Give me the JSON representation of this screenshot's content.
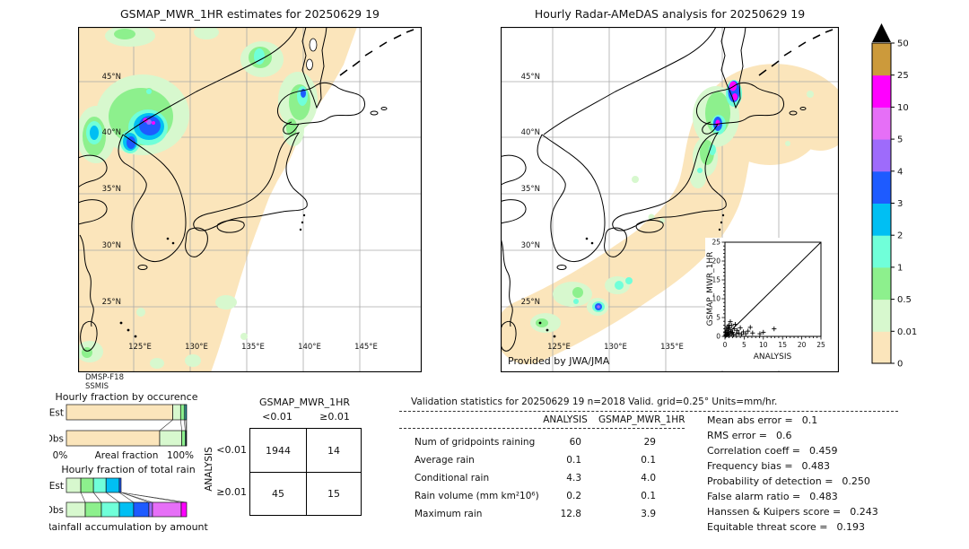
{
  "titles": {
    "left_map": "GSMAP_MWR_1HR estimates for 20250629 19",
    "right_map": "Hourly Radar-AMeDAS analysis for 20250629 19"
  },
  "maps": {
    "left": {
      "lat_labels": [
        "45°N",
        "40°N",
        "35°N",
        "30°N",
        "25°N"
      ],
      "lon_labels": [
        "125°E",
        "130°E",
        "135°E",
        "140°E",
        "145°E"
      ],
      "source_line1": "DMSP-F18",
      "source_line2": "SSMIS"
    },
    "right": {
      "lat_labels": [
        "45°N",
        "40°N",
        "35°N",
        "30°N",
        "25°N"
      ],
      "lon_labels": [
        "125°E",
        "130°E",
        "135°E"
      ],
      "credit": "Provided by JWA/JMA"
    }
  },
  "colorbar": {
    "tick_labels": [
      "0",
      "0.01",
      "0.5",
      "1",
      "2",
      "3",
      "4",
      "5",
      "10",
      "25",
      "50"
    ],
    "band_colors": [
      "#FBE5BB",
      "#D7F8CE",
      "#8DF08D",
      "#70FFD9",
      "#00BFF3",
      "#1E5BFF",
      "#9E6BFB",
      "#E66FF7",
      "#FF00FF",
      "#CC9A3B"
    ],
    "over_arrow_color": "#000000"
  },
  "chart_data": [
    {
      "type": "scatter",
      "xlabel": "ANALYSIS",
      "ylabel": "GSMAP_MWR_1HR",
      "xlim": [
        0,
        25
      ],
      "ylim": [
        0,
        25
      ],
      "ticks": [
        0,
        5,
        10,
        15,
        20,
        25
      ],
      "identity_line": true,
      "marker": "+",
      "points": [
        [
          0.1,
          0.1
        ],
        [
          0.2,
          0.5
        ],
        [
          0.2,
          1.2
        ],
        [
          0.3,
          0.3
        ],
        [
          0.4,
          2.1
        ],
        [
          0.5,
          0.9
        ],
        [
          0.5,
          1.6
        ],
        [
          0.6,
          0.4
        ],
        [
          0.7,
          2.6
        ],
        [
          0.8,
          1.1
        ],
        [
          0.9,
          0.6
        ],
        [
          1.0,
          1.9
        ],
        [
          1.0,
          3.0
        ],
        [
          1.1,
          0.3
        ],
        [
          1.2,
          2.3
        ],
        [
          1.4,
          3.9
        ],
        [
          1.5,
          1.4
        ],
        [
          1.7,
          0.8
        ],
        [
          1.8,
          2.9
        ],
        [
          2.0,
          1.1
        ],
        [
          2.2,
          0.4
        ],
        [
          2.4,
          2.0
        ],
        [
          2.7,
          3.2
        ],
        [
          3.0,
          0.7
        ],
        [
          3.2,
          1.6
        ],
        [
          3.6,
          0.9
        ],
        [
          4.0,
          2.3
        ],
        [
          4.3,
          0.5
        ],
        [
          4.8,
          1.2
        ],
        [
          5.4,
          0.7
        ],
        [
          6.0,
          1.4
        ],
        [
          6.6,
          2.4
        ],
        [
          7.2,
          0.9
        ],
        [
          9.1,
          0.7
        ],
        [
          10.0,
          1.1
        ],
        [
          12.8,
          2.0
        ]
      ]
    },
    {
      "type": "bar",
      "orientation": "horizontal-stacked",
      "title": "Hourly fraction by occurence",
      "xlabel": "Areal fraction",
      "x_axis_left": "0%",
      "x_axis_right": "100%",
      "rows": [
        {
          "label": "Est",
          "segments": [
            {
              "bin": "0",
              "color": "#FBE5BB",
              "pct": 88.5
            },
            {
              "bin": "0.01-0.5",
              "color": "#D7F8CE",
              "pct": 6.5
            },
            {
              "bin": "0.5-1",
              "color": "#8DF08D",
              "pct": 3.0
            },
            {
              "bin": "1-2",
              "color": "#70FFD9",
              "pct": 1.2
            },
            {
              "bin": "2-3",
              "color": "#00BFF3",
              "pct": 0.8
            }
          ]
        },
        {
          "label": "Obs",
          "segments": [
            {
              "bin": "0",
              "color": "#FBE5BB",
              "pct": 77.6
            },
            {
              "bin": "0.01-0.5",
              "color": "#D7F8CE",
              "pct": 18.4
            },
            {
              "bin": "0.5-1",
              "color": "#8DF08D",
              "pct": 2.8
            },
            {
              "bin": "1-2",
              "color": "#70FFD9",
              "pct": 0.8
            },
            {
              "bin": "2-3",
              "color": "#00BFF3",
              "pct": 0.4
            }
          ]
        }
      ]
    },
    {
      "type": "bar",
      "orientation": "horizontal-stacked",
      "title": "Hourly fraction of total rain",
      "caption": "Rainfall accumulation by amount",
      "rows": [
        {
          "label": "Est",
          "segments": [
            {
              "bin": "0.01-0.5",
              "color": "#D7F8CE",
              "pct": 12.0
            },
            {
              "bin": "0.5-1",
              "color": "#8DF08D",
              "pct": 10.5
            },
            {
              "bin": "1-2",
              "color": "#70FFD9",
              "pct": 10.5
            },
            {
              "bin": "2-3",
              "color": "#00BFF3",
              "pct": 11.0
            },
            {
              "bin": "3-4",
              "color": "#1E5BFF",
              "pct": 1.5
            }
          ]
        },
        {
          "label": "Obs",
          "segments": [
            {
              "bin": "0.01-0.5",
              "color": "#D7F8CE",
              "pct": 15.7
            },
            {
              "bin": "0.5-1",
              "color": "#8DF08D",
              "pct": 13.4
            },
            {
              "bin": "1-2",
              "color": "#70FFD9",
              "pct": 14.9
            },
            {
              "bin": "2-3",
              "color": "#00BFF3",
              "pct": 11.9
            },
            {
              "bin": "3-4",
              "color": "#1E5BFF",
              "pct": 12.7
            },
            {
              "bin": "4-5",
              "color": "#9E6BFB",
              "pct": 3.0
            },
            {
              "bin": "5-10",
              "color": "#E66FF7",
              "pct": 23.9
            },
            {
              "bin": "10-25",
              "color": "#FF00FF",
              "pct": 4.5
            }
          ]
        }
      ]
    }
  ],
  "contingency": {
    "header": "GSMAP_MWR_1HR",
    "col_labels": [
      "<0.01",
      "≥0.01"
    ],
    "row_axis": "ANALYSIS",
    "row_labels": [
      "<0.01",
      "≥0.01"
    ],
    "values": [
      [
        "1944",
        "14"
      ],
      [
        "45",
        "15"
      ]
    ]
  },
  "validation": {
    "title": "Validation statistics for 20250629 19  n=2018 Valid. grid=0.25° Units=mm/hr.",
    "col_headers": [
      "ANALYSIS",
      "GSMAP_MWR_1HR"
    ],
    "rows": [
      {
        "label": "Num of gridpoints raining",
        "analysis": "60",
        "gsmap": "29"
      },
      {
        "label": "Average rain",
        "analysis": "0.1",
        "gsmap": "0.1"
      },
      {
        "label": "Conditional rain",
        "analysis": "4.3",
        "gsmap": "4.0"
      },
      {
        "label": "Rain volume (mm km²10⁶)",
        "analysis": "0.2",
        "gsmap": "0.1"
      },
      {
        "label": "Maximum rain",
        "analysis": "12.8",
        "gsmap": "3.9"
      }
    ],
    "scores": [
      {
        "label": "Mean abs error =",
        "value": "0.1"
      },
      {
        "label": "RMS error =",
        "value": "0.6"
      },
      {
        "label": "Correlation coeff =",
        "value": "0.459"
      },
      {
        "label": "Frequency bias =",
        "value": "0.483"
      },
      {
        "label": "Probability of detection =",
        "value": "0.250"
      },
      {
        "label": "False alarm ratio =",
        "value": "0.483"
      },
      {
        "label": "Hanssen & Kuipers score =",
        "value": "0.243"
      },
      {
        "label": "Equitable threat score =",
        "value": "0.193"
      }
    ]
  }
}
